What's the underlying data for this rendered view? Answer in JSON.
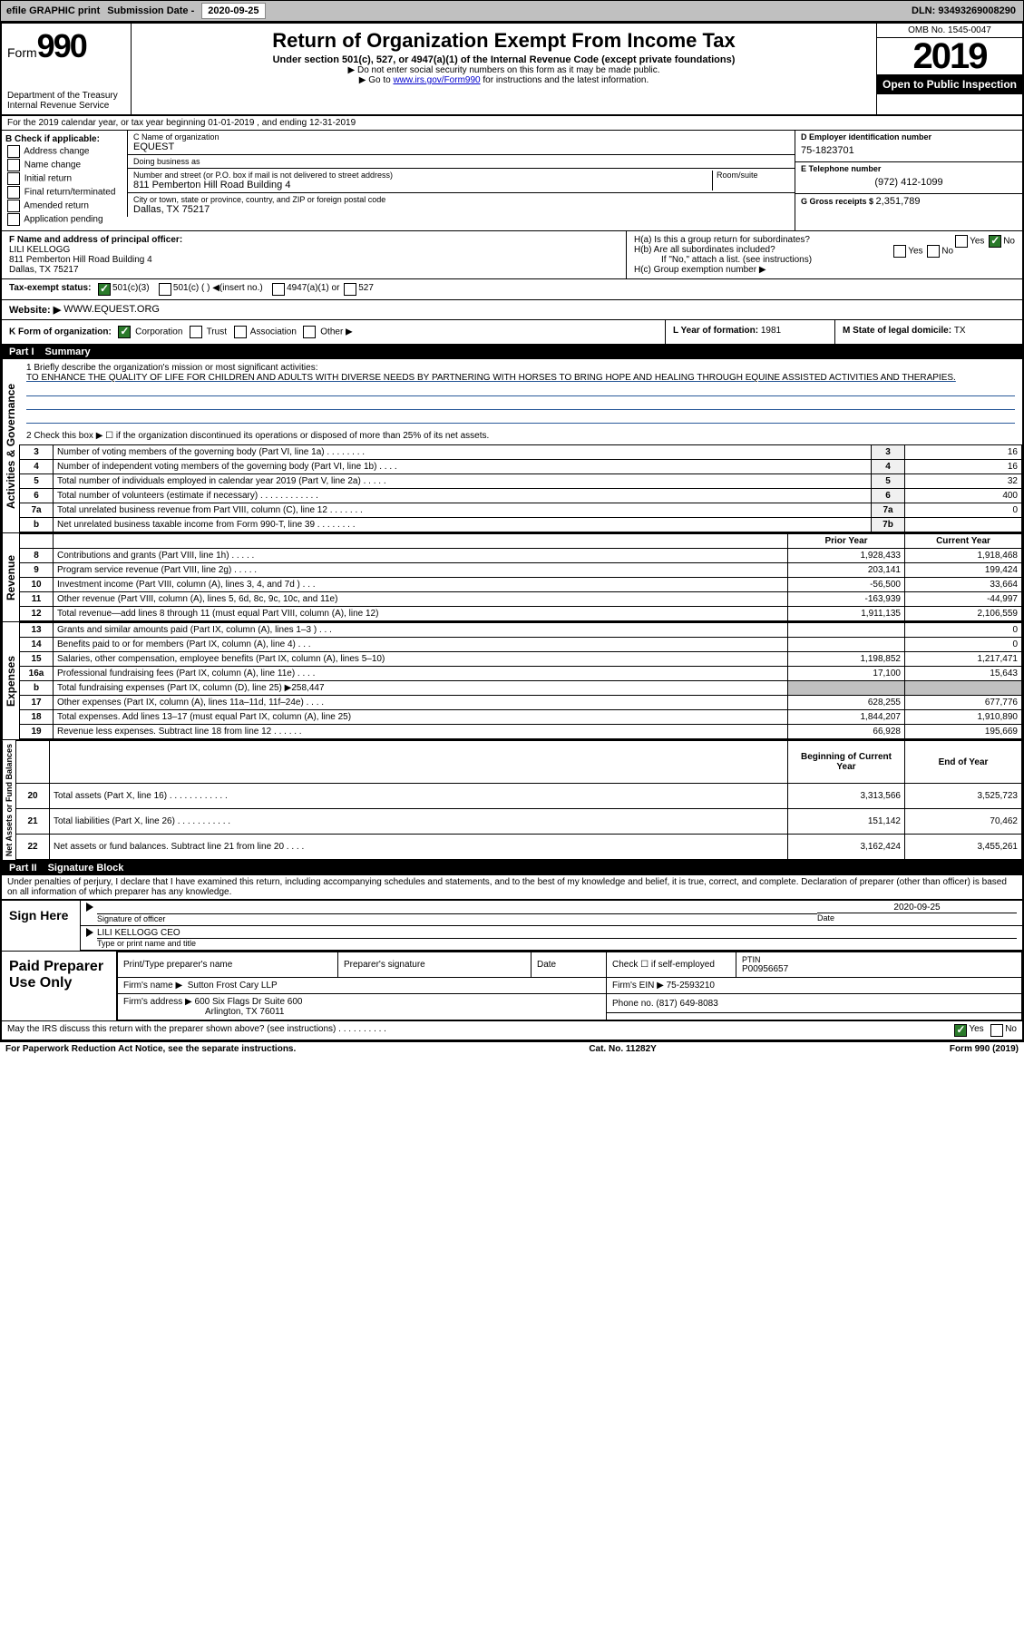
{
  "topbar": {
    "efile": "efile GRAPHIC print",
    "sub_lbl": "Submission Date - ",
    "sub_date": "2020-09-25",
    "dln": "DLN: 93493269008290"
  },
  "header": {
    "form_word": "Form",
    "form_num": "990",
    "title": "Return of Organization Exempt From Income Tax",
    "subtitle": "Under section 501(c), 527, or 4947(a)(1) of the Internal Revenue Code (except private foundations)",
    "note1": "▶ Do not enter social security numbers on this form as it may be made public.",
    "note2_pre": "▶ Go to ",
    "note2_link": "www.irs.gov/Form990",
    "note2_post": " for instructions and the latest information.",
    "dept": "Department of the Treasury",
    "irs": "Internal Revenue Service",
    "omb": "OMB No. 1545-0047",
    "year": "2019",
    "open": "Open to Public Inspection"
  },
  "A": {
    "text": "For the 2019 calendar year, or tax year beginning 01-01-2019    , and ending 12-31-2019"
  },
  "B": {
    "label": "B Check if applicable:",
    "opts": [
      "Address change",
      "Name change",
      "Initial return",
      "Final return/terminated",
      "Amended return",
      "Application pending"
    ]
  },
  "C": {
    "name_lbl": "C Name of organization",
    "name": "EQUEST",
    "dba_lbl": "Doing business as",
    "dba": "",
    "addr_lbl": "Number and street (or P.O. box if mail is not delivered to street address)",
    "room_lbl": "Room/suite",
    "addr": "811 Pemberton Hill Road Building 4",
    "city_lbl": "City or town, state or province, country, and ZIP or foreign postal code",
    "city": "Dallas, TX  75217"
  },
  "D": {
    "lbl": "D Employer identification number",
    "val": "75-1823701"
  },
  "E": {
    "lbl": "E Telephone number",
    "val": "(972) 412-1099"
  },
  "G": {
    "lbl": "G Gross receipts $ ",
    "val": "2,351,789"
  },
  "F": {
    "lbl": "F  Name and address of principal officer:",
    "name": "LILI KELLOGG",
    "addr": "811 Pemberton Hill Road Building 4",
    "city": "Dallas, TX  75217"
  },
  "H": {
    "a": "H(a)  Is this a group return for subordinates?",
    "a_no": "No",
    "a_yes": "Yes",
    "b": "H(b)  Are all subordinates included?",
    "b_yes": "Yes",
    "b_no": "No",
    "b_note": "If \"No,\" attach a list. (see instructions)",
    "c": "H(c)  Group exemption number ▶"
  },
  "I": {
    "lbl": "Tax-exempt status:",
    "o1": "501(c)(3)",
    "o2": "501(c) (  ) ◀(insert no.)",
    "o3": "4947(a)(1) or",
    "o4": "527"
  },
  "J": {
    "lbl": "Website: ▶",
    "val": "WWW.EQUEST.ORG"
  },
  "K": {
    "lbl": "K Form of organization:",
    "o1": "Corporation",
    "o2": "Trust",
    "o3": "Association",
    "o4": "Other ▶"
  },
  "L": {
    "lbl": "L Year of formation: ",
    "val": "1981"
  },
  "M": {
    "lbl": "M State of legal domicile: ",
    "val": "TX"
  },
  "part1": {
    "num": "Part I",
    "title": "Summary"
  },
  "mission": {
    "lbl": "1  Briefly describe the organization's mission or most significant activities:",
    "text": "TO ENHANCE THE QUALITY OF LIFE FOR CHILDREN AND ADULTS WITH DIVERSE NEEDS BY PARTNERING WITH HORSES TO BRING HOPE AND HEALING THROUGH EQUINE ASSISTED ACTIVITIES AND THERAPIES."
  },
  "line2": "2    Check this box ▶ ☐  if the organization discontinued its operations or disposed of more than 25% of its net assets.",
  "gov_rows": [
    {
      "n": "3",
      "t": "Number of voting members of the governing body (Part VI, line 1a)   .    .    .    .    .    .    .    .",
      "box": "3",
      "v": "16"
    },
    {
      "n": "4",
      "t": "Number of independent voting members of the governing body (Part VI, line 1b)   .    .    .    .",
      "box": "4",
      "v": "16"
    },
    {
      "n": "5",
      "t": "Total number of individuals employed in calendar year 2019 (Part V, line 2a)   .    .    .    .    .",
      "box": "5",
      "v": "32"
    },
    {
      "n": "6",
      "t": "Total number of volunteers (estimate if necessary)    .    .    .    .    .    .    .    .    .    .    .    .",
      "box": "6",
      "v": "400"
    },
    {
      "n": "7a",
      "t": "Total unrelated business revenue from Part VIII, column (C), line 12   .    .    .    .    .    .    .",
      "box": "7a",
      "v": "0"
    },
    {
      "n": "b",
      "t": "Net unrelated business taxable income from Form 990-T, line 39   .    .    .    .    .    .    .    .",
      "box": "7b",
      "v": ""
    }
  ],
  "rev_hdr": {
    "py": "Prior Year",
    "cy": "Current Year"
  },
  "rev_rows": [
    {
      "n": "8",
      "t": "Contributions and grants (Part VIII, line 1h)   .    .    .    .    .",
      "py": "1,928,433",
      "cy": "1,918,468"
    },
    {
      "n": "9",
      "t": "Program service revenue (Part VIII, line 2g)   .    .    .    .    .",
      "py": "203,141",
      "cy": "199,424"
    },
    {
      "n": "10",
      "t": "Investment income (Part VIII, column (A), lines 3, 4, and 7d )   .    .    .",
      "py": "-56,500",
      "cy": "33,664"
    },
    {
      "n": "11",
      "t": "Other revenue (Part VIII, column (A), lines 5, 6d, 8c, 9c, 10c, and 11e)",
      "py": "-163,939",
      "cy": "-44,997"
    },
    {
      "n": "12",
      "t": "Total revenue—add lines 8 through 11 (must equal Part VIII, column (A), line 12)",
      "py": "1,911,135",
      "cy": "2,106,559"
    }
  ],
  "exp_rows": [
    {
      "n": "13",
      "t": "Grants and similar amounts paid (Part IX, column (A), lines 1–3 )   .    .    .",
      "py": "",
      "cy": "0"
    },
    {
      "n": "14",
      "t": "Benefits paid to or for members (Part IX, column (A), line 4)   .    .    .",
      "py": "",
      "cy": "0"
    },
    {
      "n": "15",
      "t": "Salaries, other compensation, employee benefits (Part IX, column (A), lines 5–10)",
      "py": "1,198,852",
      "cy": "1,217,471"
    },
    {
      "n": "16a",
      "t": "Professional fundraising fees (Part IX, column (A), line 11e)   .    .    .    .",
      "py": "17,100",
      "cy": "15,643"
    },
    {
      "n": "b",
      "t": "Total fundraising expenses (Part IX, column (D), line 25) ▶258,447",
      "py": "shade",
      "cy": "shade"
    },
    {
      "n": "17",
      "t": "Other expenses (Part IX, column (A), lines 11a–11d, 11f–24e)   .    .    .    .",
      "py": "628,255",
      "cy": "677,776"
    },
    {
      "n": "18",
      "t": "Total expenses. Add lines 13–17 (must equal Part IX, column (A), line 25)",
      "py": "1,844,207",
      "cy": "1,910,890"
    },
    {
      "n": "19",
      "t": "Revenue less expenses. Subtract line 18 from line 12   .    .    .    .    .    .",
      "py": "66,928",
      "cy": "195,669"
    }
  ],
  "na_hdr": {
    "py": "Beginning of Current Year",
    "cy": "End of Year"
  },
  "na_rows": [
    {
      "n": "20",
      "t": "Total assets (Part X, line 16)   .    .    .    .    .    .    .    .    .    .    .    .",
      "py": "3,313,566",
      "cy": "3,525,723"
    },
    {
      "n": "21",
      "t": "Total liabilities (Part X, line 26)   .    .    .    .    .    .    .    .    .    .    .",
      "py": "151,142",
      "cy": "70,462"
    },
    {
      "n": "22",
      "t": "Net assets or fund balances. Subtract line 21 from line 20   .    .    .    .",
      "py": "3,162,424",
      "cy": "3,455,261"
    }
  ],
  "sidelabels": {
    "gov": "Activities & Governance",
    "rev": "Revenue",
    "exp": "Expenses",
    "na": "Net Assets or Fund Balances"
  },
  "part2": {
    "num": "Part II",
    "title": "Signature Block"
  },
  "penalties": "Under penalties of perjury, I declare that I have examined this return, including accompanying schedules and statements, and to the best of my knowledge and belief, it is true, correct, and complete. Declaration of preparer (other than officer) is based on all information of which preparer has any knowledge.",
  "sign": {
    "here": "Sign Here",
    "sig_lbl": "Signature of officer",
    "date_lbl": "Date",
    "date": "2020-09-25",
    "name": "LILI KELLOGG  CEO",
    "name_lbl": "Type or print name and title"
  },
  "paid": {
    "title": "Paid Preparer Use Only",
    "h1": "Print/Type preparer's name",
    "h2": "Preparer's signature",
    "h3": "Date",
    "h4": "Check ☐ if self-employed",
    "h5": "PTIN",
    "ptin": "P00956657",
    "firm_lbl": "Firm's name   ▶",
    "firm": "Sutton Frost Cary LLP",
    "ein_lbl": "Firm's EIN ▶",
    "ein": "75-2593210",
    "addr_lbl": "Firm's address ▶",
    "addr": "600 Six Flags Dr Suite 600",
    "phone_lbl": "Phone no.",
    "phone": "(817) 649-8083",
    "city": "Arlington, TX  76011"
  },
  "discuss": {
    "q": "May the IRS discuss this return with the preparer shown above? (see instructions)   .    .    .    .    .    .    .    .    .    .",
    "yes": "Yes",
    "no": "No"
  },
  "footer": {
    "l": "For Paperwork Reduction Act Notice, see the separate instructions.",
    "c": "Cat. No. 11282Y",
    "r": "Form 990 (2019)"
  }
}
